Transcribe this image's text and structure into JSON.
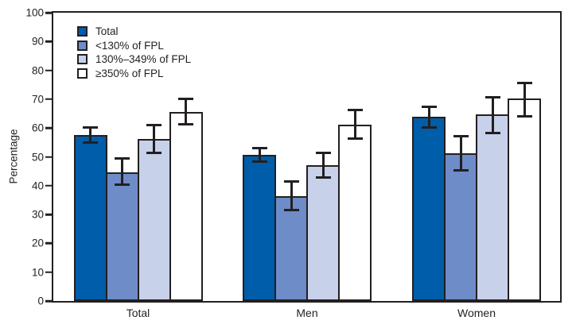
{
  "colors": {
    "axis": "#231f20",
    "background": "#ffffff",
    "series_total": "#005da9",
    "series_under130": "#6e8cc7",
    "series_130_349": "#c8d1ea",
    "series_350plus": "#ffffff"
  },
  "chart_data": {
    "type": "bar",
    "title": "",
    "xlabel": "",
    "ylabel": "Percentage",
    "ylim": [
      0,
      100
    ],
    "yticks": [
      0,
      10,
      20,
      30,
      40,
      50,
      60,
      70,
      80,
      90,
      100
    ],
    "grid": false,
    "error_bars": true,
    "legend_position": "inside top-left",
    "categories": [
      "Total",
      "Men",
      "Women"
    ],
    "series": [
      {
        "name": "Total",
        "color": "#005da9",
        "values": [
          57.5,
          50.8,
          63.8
        ],
        "ci_low": [
          54.5,
          48.0,
          59.8
        ],
        "ci_high": [
          60.5,
          53.5,
          67.8
        ]
      },
      {
        "name": "<130% of FPL",
        "color": "#6e8cc7",
        "values": [
          44.7,
          36.5,
          51.2
        ],
        "ci_low": [
          40.0,
          31.2,
          45.0
        ],
        "ci_high": [
          50.0,
          42.0,
          57.5
        ]
      },
      {
        "name": "130%–349% of FPL",
        "color": "#c8d1ea",
        "values": [
          56.2,
          47.0,
          64.8
        ],
        "ci_low": [
          51.0,
          42.3,
          57.8
        ],
        "ci_high": [
          61.3,
          51.8,
          71.2
        ]
      },
      {
        "name": "≥350% of FPL",
        "color": "#ffffff",
        "values": [
          65.7,
          61.2,
          70.2
        ],
        "ci_low": [
          61.0,
          55.9,
          63.7
        ],
        "ci_high": [
          70.4,
          66.8,
          76.1
        ]
      }
    ]
  }
}
